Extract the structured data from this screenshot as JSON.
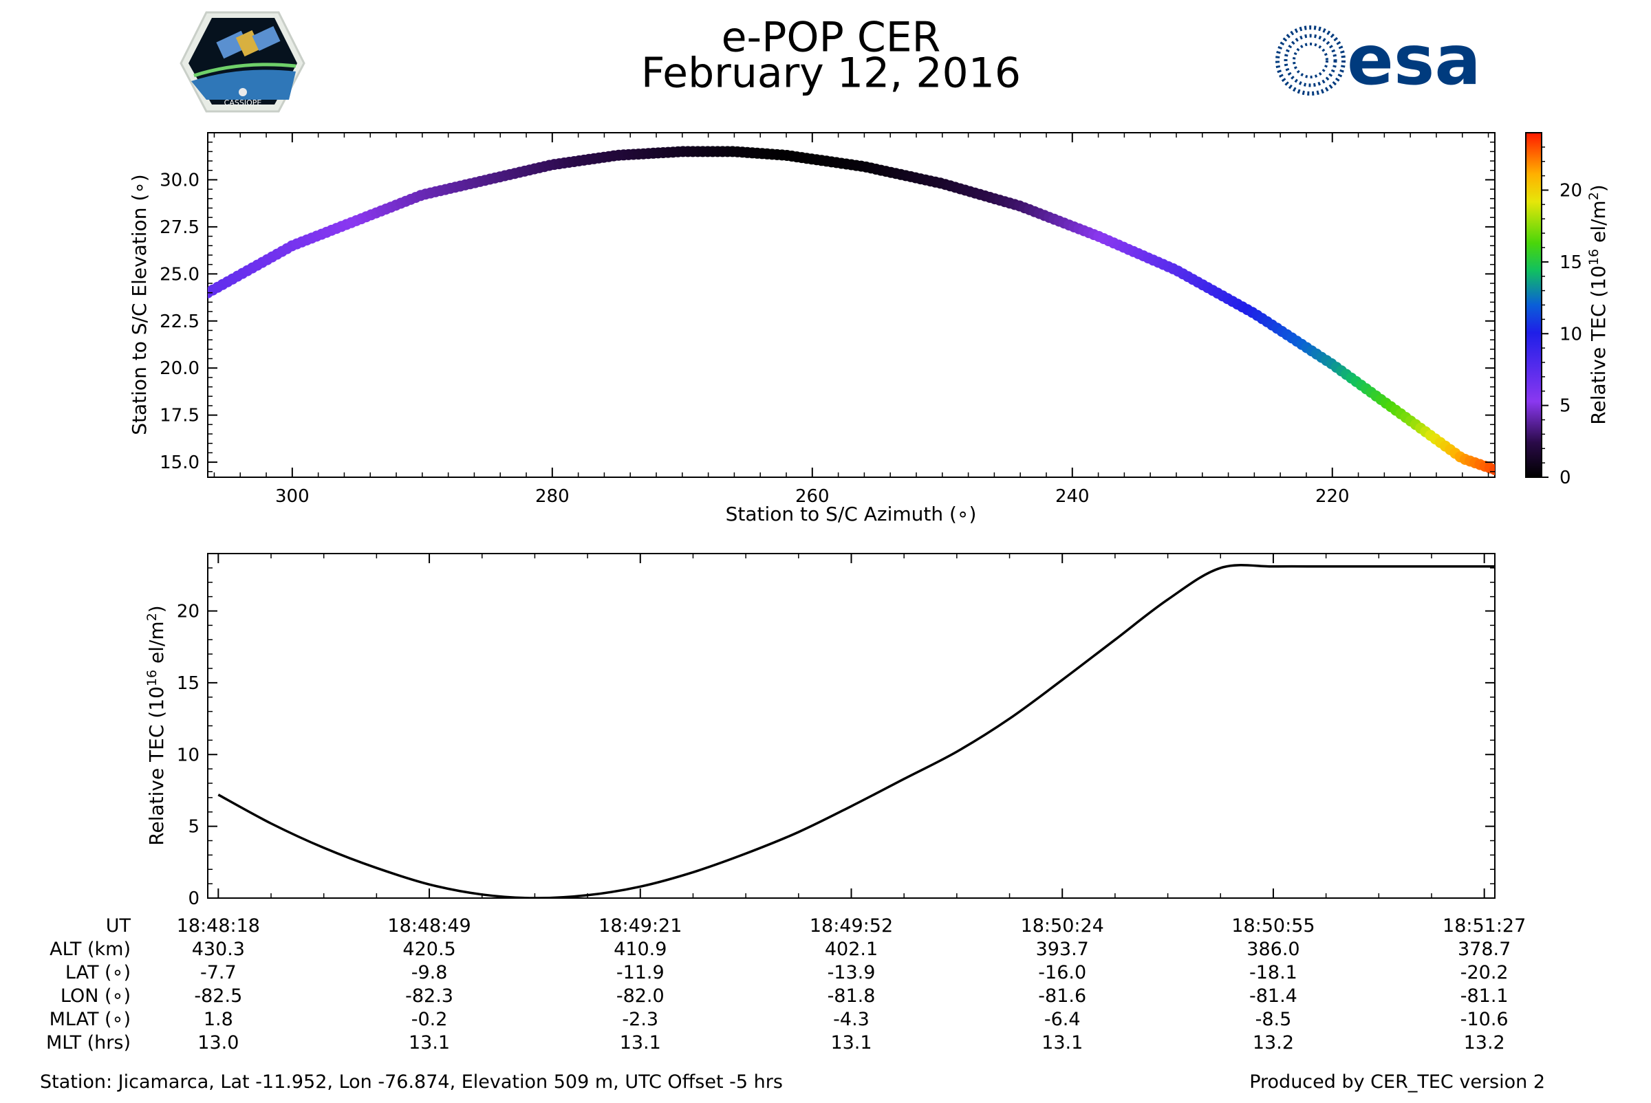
{
  "header": {
    "title": "e-POP CER",
    "date": "February 12, 2016",
    "left_logo_caption": "CASSIOPE",
    "right_logo_text": "esa",
    "right_logo_color": "#003b7e"
  },
  "chart_data": [
    {
      "type": "scatter",
      "xlabel": "Station to S/C Azimuth (∘)",
      "ylabel": "Station to S/C Elevation (∘)",
      "xlim": [
        306.5,
        207.5
      ],
      "ylim": [
        14.2,
        32.5
      ],
      "x_ticks": [
        300,
        280,
        260,
        240,
        220
      ],
      "x_tick_labels": [
        "300",
        "280",
        "260",
        "240",
        "220"
      ],
      "y_ticks": [
        15.0,
        17.5,
        20.0,
        22.5,
        25.0,
        27.5,
        30.0
      ],
      "y_tick_labels": [
        "15.0",
        "17.5",
        "20.0",
        "22.5",
        "25.0",
        "27.5",
        "30.0"
      ],
      "color_by": "Relative TEC",
      "points": {
        "azimuth": [
          306.5,
          300,
          290,
          280,
          275,
          270,
          266,
          262,
          256,
          250,
          244,
          238,
          232,
          226,
          220,
          214,
          210,
          207.5
        ],
        "elevation": [
          24.0,
          26.5,
          29.2,
          30.8,
          31.3,
          31.5,
          31.5,
          31.3,
          30.7,
          29.8,
          28.6,
          27.0,
          25.2,
          22.9,
          20.2,
          17.2,
          15.2,
          14.6
        ],
        "tec": [
          7.2,
          6.2,
          4.3,
          2.7,
          1.9,
          1.1,
          0.4,
          0.05,
          0.3,
          1.4,
          3.0,
          5.2,
          7.6,
          10.3,
          13.2,
          17.4,
          21.5,
          23.1
        ]
      },
      "colorbar": {
        "label": "Relative TEC (10",
        "label_sup": "16",
        "label_end": " el/m",
        "label_sup2": "2",
        "label_close": ")",
        "range": [
          0,
          24
        ],
        "ticks": [
          0,
          5,
          10,
          15,
          20
        ],
        "tick_labels": [
          "0",
          "5",
          "10",
          "15",
          "20"
        ]
      }
    },
    {
      "type": "line",
      "ylabel": "Relative TEC (10",
      "ylabel_sup": "16",
      "ylabel_end": " el/m",
      "ylabel_sup2": "2",
      "ylabel_close": ")",
      "xlim": [
        -0.05,
        6.05
      ],
      "ylim": [
        0,
        24
      ],
      "y_ticks": [
        0,
        5,
        10,
        15,
        20
      ],
      "y_tick_labels": [
        "0",
        "5",
        "10",
        "15",
        "20"
      ],
      "x": [
        0,
        0.25,
        0.5,
        0.75,
        1.0,
        1.25,
        1.5,
        1.75,
        2.0,
        2.25,
        2.5,
        2.75,
        3.0,
        3.25,
        3.5,
        3.75,
        4.0,
        4.25,
        4.5,
        4.75,
        5.0,
        5.25,
        5.5,
        5.6,
        5.75,
        6.05
      ],
      "y": [
        7.2,
        5.2,
        3.5,
        2.1,
        0.95,
        0.25,
        0.0,
        0.2,
        0.8,
        1.8,
        3.1,
        4.6,
        6.4,
        8.3,
        10.2,
        12.5,
        15.2,
        18.0,
        20.8,
        23.0,
        23.1,
        23.1,
        23.1,
        23.1,
        23.1,
        23.1
      ],
      "series_color": "#000000"
    }
  ],
  "info_table": {
    "row_labels": [
      "UT",
      "ALT (km)",
      "LAT (∘)",
      "LON (∘)",
      "MLAT (∘)",
      "MLT (hrs)"
    ],
    "columns": [
      [
        "18:48:18",
        "430.3",
        "-7.7",
        "-82.5",
        "1.8",
        "13.0"
      ],
      [
        "18:48:49",
        "420.5",
        "-9.8",
        "-82.3",
        "-0.2",
        "13.1"
      ],
      [
        "18:49:21",
        "410.9",
        "-11.9",
        "-82.0",
        "-2.3",
        "13.1"
      ],
      [
        "18:49:52",
        "402.1",
        "-13.9",
        "-81.8",
        "-4.3",
        "13.1"
      ],
      [
        "18:50:24",
        "393.7",
        "-16.0",
        "-81.6",
        "-6.4",
        "13.1"
      ],
      [
        "18:50:55",
        "386.0",
        "-18.1",
        "-81.4",
        "-8.5",
        "13.2"
      ],
      [
        "18:51:27",
        "378.7",
        "-20.2",
        "-81.1",
        "-10.6",
        "13.2"
      ]
    ]
  },
  "footer": {
    "station": "Station: Jicamarca, Lat -11.952, Lon -76.874, Elevation 509 m, UTC Offset -5 hrs",
    "produced": "Produced by CER_TEC version 2"
  }
}
